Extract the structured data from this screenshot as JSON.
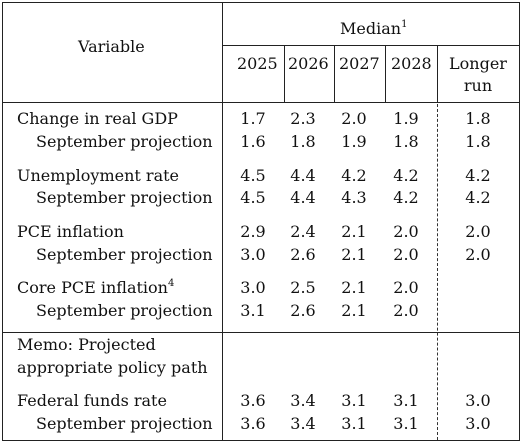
{
  "header": {
    "variable_label": "Variable",
    "median_label": "Median",
    "median_footnote": "1",
    "years": [
      "2025",
      "2026",
      "2027",
      "2028"
    ],
    "longer_run_line1": "Longer",
    "longer_run_line2": "run"
  },
  "rows": [
    {
      "label": "Change in real GDP",
      "footnote": "",
      "values": [
        "1.7",
        "2.3",
        "2.0",
        "1.9",
        "1.8"
      ]
    },
    {
      "label": "September projection",
      "footnote": "",
      "values": [
        "1.6",
        "1.8",
        "1.9",
        "1.8",
        "1.8"
      ]
    },
    {
      "label": "Unemployment rate",
      "footnote": "",
      "values": [
        "4.5",
        "4.4",
        "4.2",
        "4.2",
        "4.2"
      ]
    },
    {
      "label": "September projection",
      "footnote": "",
      "values": [
        "4.5",
        "4.4",
        "4.3",
        "4.2",
        "4.2"
      ]
    },
    {
      "label": "PCE inflation",
      "footnote": "",
      "values": [
        "2.9",
        "2.4",
        "2.1",
        "2.0",
        "2.0"
      ]
    },
    {
      "label": "September projection",
      "footnote": "",
      "values": [
        "3.0",
        "2.6",
        "2.1",
        "2.0",
        "2.0"
      ]
    },
    {
      "label": "Core PCE inflation",
      "footnote": "4",
      "values": [
        "3.0",
        "2.5",
        "2.1",
        "2.0",
        ""
      ]
    },
    {
      "label": "September projection",
      "footnote": "",
      "values": [
        "3.1",
        "2.6",
        "2.1",
        "2.0",
        ""
      ]
    }
  ],
  "memo": {
    "line1": "Memo: Projected",
    "line2": "appropriate policy path"
  },
  "policy_rows": [
    {
      "label": "Federal funds rate",
      "values": [
        "3.6",
        "3.4",
        "3.1",
        "3.1",
        "3.0"
      ]
    },
    {
      "label": "September projection",
      "values": [
        "3.6",
        "3.4",
        "3.1",
        "3.1",
        "3.0"
      ]
    }
  ]
}
